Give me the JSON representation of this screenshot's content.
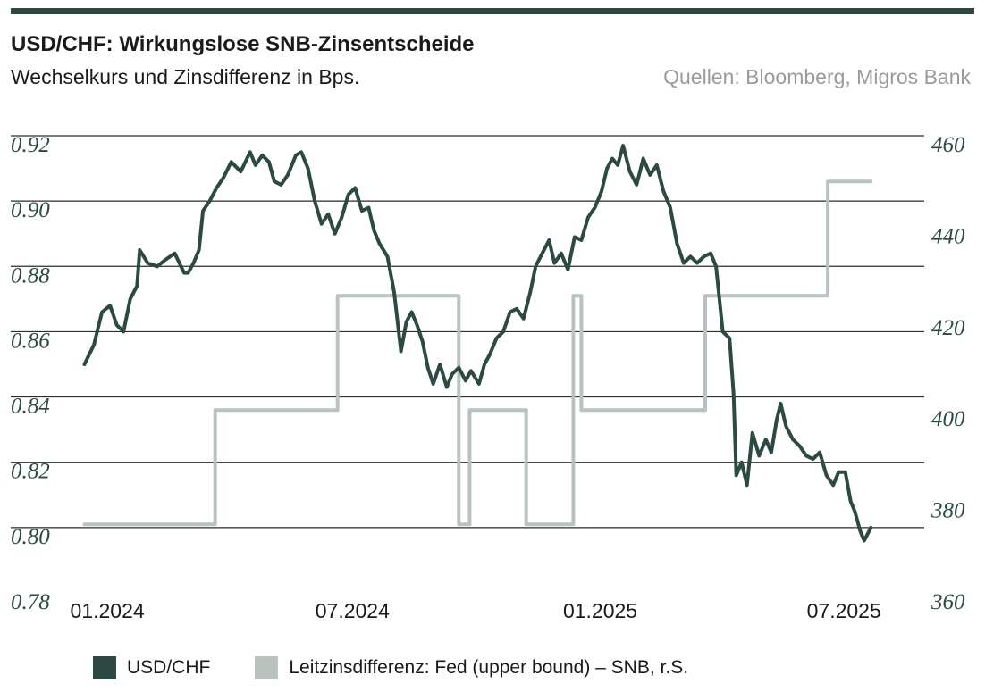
{
  "header": {
    "title": "USD/CHF: Wirkungslose SNB-Zinsentscheide",
    "subtitle": "Wechselkurs und Zinsdifferenz in Bps.",
    "source": "Quellen: Bloomberg, Migros Bank"
  },
  "colors": {
    "usdchf": "#2c4a43",
    "spread": "#b9c2bd",
    "grid": "#2b2b2b",
    "rule": "#2c4a43"
  },
  "legend": {
    "usdchf": "USD/CHF",
    "spread": "Leitzinsdifferenz: Fed (upper bound) – SNB, r.S."
  },
  "chart_data": {
    "type": "line",
    "x_axis": {
      "type": "date",
      "range": [
        "2023-12-12",
        "2025-08-15"
      ],
      "tick_labels": [
        "01.2024",
        "07.2024",
        "01.2025",
        "07.2025"
      ],
      "tick_dates": [
        "2024-01-01",
        "2024-07-01",
        "2025-01-01",
        "2025-07-01"
      ]
    },
    "y_left": {
      "range": [
        0.78,
        0.92
      ],
      "ticks": [
        0.78,
        0.8,
        0.82,
        0.84,
        0.86,
        0.88,
        0.9,
        0.92
      ],
      "tick_labels": [
        "0.78",
        "0.80",
        "0.82",
        "0.84",
        "0.86",
        "0.88",
        "0.90",
        "0.92"
      ]
    },
    "y_right": {
      "range": [
        360,
        460
      ],
      "ticks": [
        360,
        380,
        400,
        420,
        440,
        460
      ],
      "tick_labels": [
        "360",
        "380",
        "400",
        "420",
        "440",
        "460"
      ]
    },
    "grid": "horizontal",
    "series": [
      {
        "name": "USD/CHF",
        "axis": "left",
        "points": [
          [
            "2023-12-15",
            0.85
          ],
          [
            "2023-12-22",
            0.856
          ],
          [
            "2023-12-28",
            0.866
          ],
          [
            "2024-01-03",
            0.868
          ],
          [
            "2024-01-08",
            0.862
          ],
          [
            "2024-01-13",
            0.86
          ],
          [
            "2024-01-18",
            0.87
          ],
          [
            "2024-01-23",
            0.874
          ],
          [
            "2024-01-25",
            0.885
          ],
          [
            "2024-01-31",
            0.881
          ],
          [
            "2024-02-07",
            0.88
          ],
          [
            "2024-02-13",
            0.882
          ],
          [
            "2024-02-20",
            0.884
          ],
          [
            "2024-02-27",
            0.878
          ],
          [
            "2024-03-01",
            0.878
          ],
          [
            "2024-03-05",
            0.881
          ],
          [
            "2024-03-09",
            0.885
          ],
          [
            "2024-03-12",
            0.897
          ],
          [
            "2024-03-17",
            0.9
          ],
          [
            "2024-03-22",
            0.904
          ],
          [
            "2024-03-27",
            0.907
          ],
          [
            "2024-04-02",
            0.912
          ],
          [
            "2024-04-09",
            0.909
          ],
          [
            "2024-04-16",
            0.915
          ],
          [
            "2024-04-20",
            0.911
          ],
          [
            "2024-04-25",
            0.914
          ],
          [
            "2024-04-30",
            0.912
          ],
          [
            "2024-05-04",
            0.906
          ],
          [
            "2024-05-09",
            0.905
          ],
          [
            "2024-05-14",
            0.908
          ],
          [
            "2024-05-20",
            0.914
          ],
          [
            "2024-05-24",
            0.915
          ],
          [
            "2024-05-29",
            0.91
          ],
          [
            "2024-06-03",
            0.9
          ],
          [
            "2024-06-08",
            0.893
          ],
          [
            "2024-06-13",
            0.896
          ],
          [
            "2024-06-18",
            0.89
          ],
          [
            "2024-06-23",
            0.895
          ],
          [
            "2024-06-28",
            0.902
          ],
          [
            "2024-07-03",
            0.904
          ],
          [
            "2024-07-08",
            0.897
          ],
          [
            "2024-07-13",
            0.898
          ],
          [
            "2024-07-17",
            0.891
          ],
          [
            "2024-07-21",
            0.887
          ],
          [
            "2024-07-27",
            0.883
          ],
          [
            "2024-08-01",
            0.872
          ],
          [
            "2024-08-06",
            0.854
          ],
          [
            "2024-08-10",
            0.863
          ],
          [
            "2024-08-14",
            0.866
          ],
          [
            "2024-08-18",
            0.862
          ],
          [
            "2024-08-22",
            0.857
          ],
          [
            "2024-08-26",
            0.849
          ],
          [
            "2024-08-30",
            0.844
          ],
          [
            "2024-09-04",
            0.85
          ],
          [
            "2024-09-09",
            0.843
          ],
          [
            "2024-09-13",
            0.847
          ],
          [
            "2024-09-18",
            0.849
          ],
          [
            "2024-09-23",
            0.845
          ],
          [
            "2024-09-27",
            0.848
          ],
          [
            "2024-10-03",
            0.844
          ],
          [
            "2024-10-07",
            0.85
          ],
          [
            "2024-10-11",
            0.853
          ],
          [
            "2024-10-16",
            0.858
          ],
          [
            "2024-10-21",
            0.86
          ],
          [
            "2024-10-26",
            0.866
          ],
          [
            "2024-10-31",
            0.867
          ],
          [
            "2024-11-05",
            0.864
          ],
          [
            "2024-11-10",
            0.872
          ],
          [
            "2024-11-14",
            0.88
          ],
          [
            "2024-11-19",
            0.884
          ],
          [
            "2024-11-24",
            0.888
          ],
          [
            "2024-11-28",
            0.881
          ],
          [
            "2024-12-03",
            0.884
          ],
          [
            "2024-12-08",
            0.879
          ],
          [
            "2024-12-13",
            0.889
          ],
          [
            "2024-12-18",
            0.888
          ],
          [
            "2024-12-23",
            0.895
          ],
          [
            "2024-12-28",
            0.898
          ],
          [
            "2025-01-02",
            0.903
          ],
          [
            "2025-01-06",
            0.91
          ],
          [
            "2025-01-10",
            0.913
          ],
          [
            "2025-01-14",
            0.911
          ],
          [
            "2025-01-18",
            0.917
          ],
          [
            "2025-01-23",
            0.909
          ],
          [
            "2025-01-28",
            0.905
          ],
          [
            "2025-02-02",
            0.913
          ],
          [
            "2025-02-07",
            0.908
          ],
          [
            "2025-02-12",
            0.911
          ],
          [
            "2025-02-17",
            0.903
          ],
          [
            "2025-02-22",
            0.898
          ],
          [
            "2025-02-27",
            0.887
          ],
          [
            "2025-03-04",
            0.881
          ],
          [
            "2025-03-09",
            0.883
          ],
          [
            "2025-03-14",
            0.881
          ],
          [
            "2025-03-19",
            0.883
          ],
          [
            "2025-03-24",
            0.884
          ],
          [
            "2025-03-28",
            0.88
          ],
          [
            "2025-04-02",
            0.86
          ],
          [
            "2025-04-07",
            0.858
          ],
          [
            "2025-04-10",
            0.841
          ],
          [
            "2025-04-12",
            0.816
          ],
          [
            "2025-04-16",
            0.82
          ],
          [
            "2025-04-20",
            0.813
          ],
          [
            "2025-04-24",
            0.829
          ],
          [
            "2025-04-29",
            0.822
          ],
          [
            "2025-05-04",
            0.827
          ],
          [
            "2025-05-08",
            0.823
          ],
          [
            "2025-05-12",
            0.833
          ],
          [
            "2025-05-15",
            0.838
          ],
          [
            "2025-05-19",
            0.831
          ],
          [
            "2025-05-24",
            0.827
          ],
          [
            "2025-05-29",
            0.825
          ],
          [
            "2025-06-03",
            0.822
          ],
          [
            "2025-06-08",
            0.821
          ],
          [
            "2025-06-13",
            0.823
          ],
          [
            "2025-06-18",
            0.816
          ],
          [
            "2025-06-23",
            0.813
          ],
          [
            "2025-06-27",
            0.817
          ],
          [
            "2025-07-02",
            0.817
          ],
          [
            "2025-07-06",
            0.808
          ],
          [
            "2025-07-09",
            0.805
          ],
          [
            "2025-07-13",
            0.799
          ],
          [
            "2025-07-16",
            0.796
          ],
          [
            "2025-07-21",
            0.8
          ]
        ]
      },
      {
        "name": "Leitzinsdifferenz: Fed (upper bound) – SNB, r.S.",
        "axis": "right",
        "step": true,
        "points": [
          [
            "2023-12-15",
            375
          ],
          [
            "2024-03-21",
            375
          ],
          [
            "2024-03-21",
            400
          ],
          [
            "2024-06-20",
            400
          ],
          [
            "2024-06-20",
            425
          ],
          [
            "2024-09-18",
            425
          ],
          [
            "2024-09-18",
            375
          ],
          [
            "2024-09-26",
            375
          ],
          [
            "2024-09-26",
            400
          ],
          [
            "2024-11-07",
            400
          ],
          [
            "2024-11-07",
            375
          ],
          [
            "2024-12-12",
            375
          ],
          [
            "2024-12-12",
            425
          ],
          [
            "2024-12-18",
            425
          ],
          [
            "2024-12-18",
            400
          ],
          [
            "2025-03-20",
            400
          ],
          [
            "2025-03-20",
            425
          ],
          [
            "2025-06-19",
            425
          ],
          [
            "2025-06-19",
            450
          ],
          [
            "2025-07-21",
            450
          ]
        ]
      }
    ]
  }
}
